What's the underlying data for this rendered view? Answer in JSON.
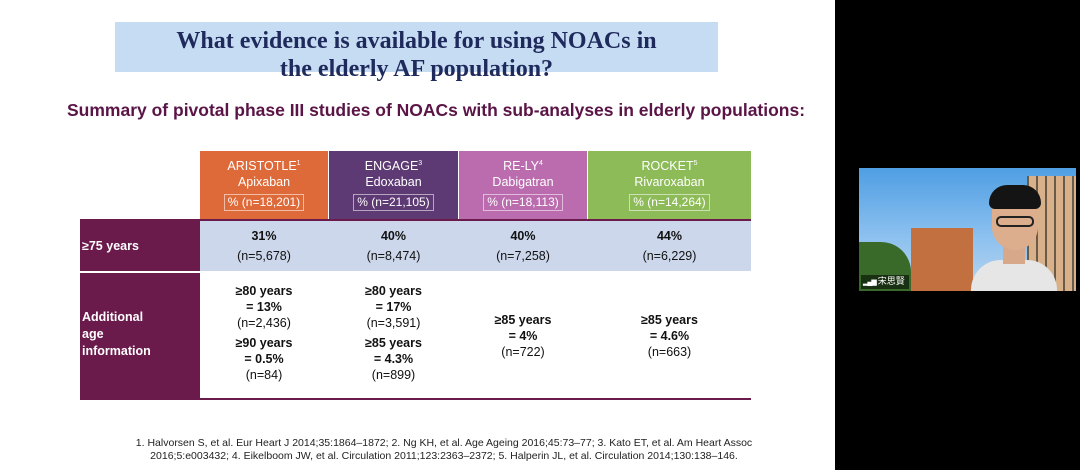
{
  "slide": {
    "title_line1": "What evidence is available for using NOACs in",
    "title_line2": "the elderly AF population?",
    "subtitle": "Summary of pivotal phase III studies of NOACs with sub-analyses in elderly populations:",
    "studies": [
      {
        "trial": "ARISTOTLE",
        "ref": "1",
        "drug": "Apixaban",
        "n": "% (n=18,201)",
        "color": "#de6a3a"
      },
      {
        "trial": "ENGAGE",
        "ref": "3",
        "drug": "Edoxaban",
        "n": "% (n=21,105)",
        "color": "#5d3a73"
      },
      {
        "trial": "RE-LY",
        "ref": "4",
        "drug": "Dabigatran",
        "n": "% (n=18,113)",
        "color": "#bb6cae"
      },
      {
        "trial": "ROCKET",
        "ref": "5",
        "drug": "Rivaroxaban",
        "n": "% (n=14,264)",
        "color": "#8dbb57"
      }
    ],
    "row_75": {
      "label": "≥75 years",
      "cells": [
        {
          "pct": "31%",
          "n": "(n=5,678)"
        },
        {
          "pct": "40%",
          "n": "(n=8,474)"
        },
        {
          "pct": "40%",
          "n": "(n=7,258)"
        },
        {
          "pct": "44%",
          "n": "(n=6,229)"
        }
      ]
    },
    "row_additional": {
      "label_line1": "Additional",
      "label_line2": "age",
      "label_line3": "information",
      "aristotle": [
        {
          "line1": "≥80 years",
          "line2": "= 13%",
          "n": "(n=2,436)"
        },
        {
          "line1": "≥90 years",
          "line2": "= 0.5%",
          "n": "(n=84)"
        }
      ],
      "engage": [
        {
          "line1": "≥80 years",
          "line2": "= 17%",
          "n": "(n=3,591)"
        },
        {
          "line1": "≥85 years",
          "line2": "= 4.3%",
          "n": "(n=899)"
        }
      ],
      "rely": {
        "line1": "≥85 years",
        "line2": "= 4%",
        "n": "(n=722)"
      },
      "rocket": {
        "line1": "≥85 years",
        "line2": "= 4.6%",
        "n": "(n=663)"
      }
    },
    "references_line1": "1. Halvorsen S, et al. Eur Heart J 2014;35:1864–1872; 2. Ng KH, et al. Age Ageing 2016;45:73–77; 3. Kato ET, et al. Am Heart Assoc",
    "references_line2": "2016;5:e003432; 4. Eikelboom JW, et al. Circulation 2011;123:2363–2372; 5. Halperin JL, et al. Circulation 2014;130:138–146."
  },
  "video": {
    "participant_name": "宋思賢",
    "signal_icon": "signal-bars-icon"
  },
  "colors": {
    "title_bg": "#c6dcf3",
    "title_text": "#1f2a5c",
    "subtitle_text": "#5a1446",
    "row_label_bg": "#6b1a4c",
    "row_75_bg": "#ccd7eb"
  }
}
